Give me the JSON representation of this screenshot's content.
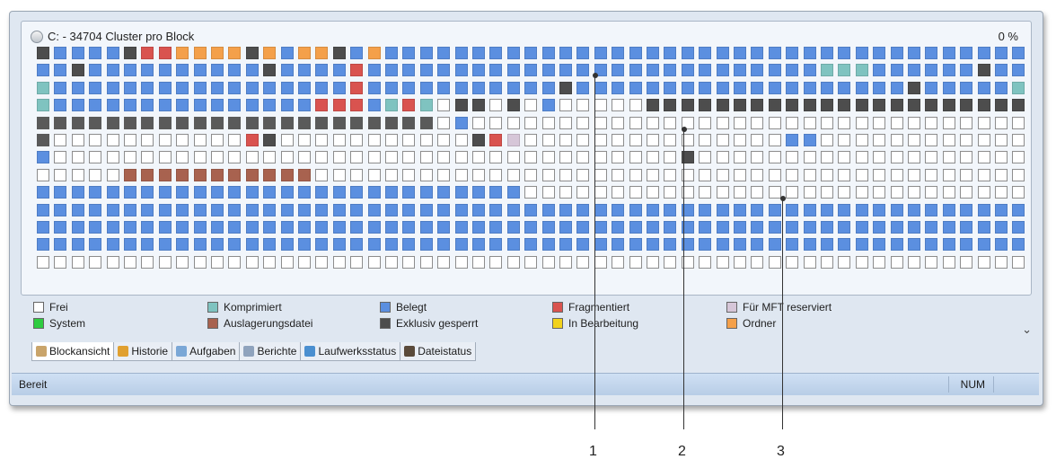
{
  "panel": {
    "title": "C: - 34704 Cluster pro Block",
    "percent": "0 %"
  },
  "grid": {
    "rows": [
      "xbbbbxrrooooxobooxbobbbbbbbbbbbbbbbbbbbbbbbbbbbbbbbbbbbbbbbbbbbbbbbbbbbbbbbbbbbobbbbbbbbbxbo",
      "bbxbbbbbbbbbbxbbbbrbbbbbbbbbbbbbbbbbbbbbbbbbbtttbbbbbbxbbbbbbbbbbbbbbbbbbbbbbbbbbbbbbbbbbbbob",
      "tbbbbbbbbbbbbbbbbbrbbbbbbbbbbbxbbbbbbbbbbbbbbbbbbbxbbbbbttbbbbbbbbbbbbbbbbbtobbbbbbbbbbbbrbbb",
      "tbbbbbbbbbbbbbbbrrrbtrtfxxfxfbfffffxxxxxxxxxxxxxxxxxxxxxxxxxxxxxxxxxxxxxxxxxxxxxxxxxxxxxxxxxxx",
      "dddddddddddddddddddddddfbffffffffffffffffffffffffffffffffffffffffffffffffffffffffffffffffffffffd",
      "dfffffffffffrxfffffffffffxrmfffffffffffffffbbfffffffffffffffffffffbbbbbbbbbbbbbbbbbbbbbbbbbbbd",
      "bffffffffffffffffffffffffffffffffffffxffffffffffffffffffffffffffffffffffffffffffffffffffffffffff",
      "fffffpppppppppppfffffffffffffffffffffffffffffffffffffffffffffffffffffffffffffffffffffffffffffff",
      "bbbbbbbbbbbbbbbbbbbbbbbbbbbbffffffffffffffffffffffffffffffffffffffffffffffffffffffffxbbbbbbbbb",
      "bbbbbbbbbbbbbbbbbbbbbbbbbbbbbbbbbbbbbbbbbbbbbbbbbbbbbbbbbbbbbbbbbbbbbbbbbbbbbbbbbbbbbbbbbbbbbb",
      "bbbbbbbbbbbbbbbbbbbbbbbbbbbbbbbbbbbbbbbbbbbbbbbbbbbbbbbbbbbbbbbbbbbbbbbbbbbbbbbbbbbbbbbbbbbbbb",
      "bbbbbbbbbbbbbbbbbbbbbbbbbbbbbbbbbbbbbbbbbbbbbbbbbbbbbbbbbbbbbbbbbbbbbbbbbbbbbbbbbbbbbbbbbbbff",
      "fffffffffffffffffffffffffffffffffffffffffffffffffffffffffffffffffffffffffffffffffffffffffffff"
    ]
  },
  "legend": [
    {
      "label": "Frei",
      "color": "#ffffff"
    },
    {
      "label": "System",
      "color": "#2ecc40"
    },
    {
      "label": "Komprimiert",
      "color": "#7fc3c0"
    },
    {
      "label": "Auslagerungsdatei",
      "color": "#a8624f"
    },
    {
      "label": "Belegt",
      "color": "#5b8fe0"
    },
    {
      "label": "Exklusiv gesperrt",
      "color": "#4d4d4d"
    },
    {
      "label": "Fragmentiert",
      "color": "#d9534f"
    },
    {
      "label": "In Bearbeitung",
      "color": "#f2d21b"
    },
    {
      "label": "Für MFT reserviert",
      "color": "#d6c6d8"
    },
    {
      "label": "Ordner",
      "color": "#f4a04a"
    }
  ],
  "tabs": [
    {
      "label": "Blockansicht",
      "icon": "block-view-icon",
      "color": "#c9a46a"
    },
    {
      "label": "Historie",
      "icon": "history-chart-icon",
      "color": "#e0a030"
    },
    {
      "label": "Aufgaben",
      "icon": "tasks-icon",
      "color": "#7aa7d6"
    },
    {
      "label": "Berichte",
      "icon": "reports-icon",
      "color": "#8fa3bd"
    },
    {
      "label": "Laufwerksstatus",
      "icon": "drive-status-icon",
      "color": "#4a8fd0"
    },
    {
      "label": "Dateistatus",
      "icon": "file-status-icon",
      "color": "#5a4a3a"
    }
  ],
  "statusbar": {
    "text": "Bereit",
    "num": "NUM"
  },
  "callouts": [
    "1",
    "2",
    "3"
  ]
}
